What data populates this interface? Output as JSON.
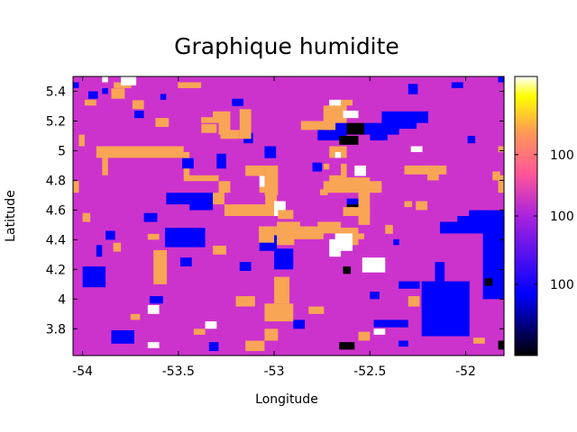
{
  "chart_data": {
    "type": "heatmap",
    "title": "Graphique humidite",
    "xlabel": "Longitude",
    "ylabel": "Latitude",
    "xlim": [
      -54.05,
      -51.8
    ],
    "ylim": [
      3.62,
      5.5
    ],
    "x_ticks": [
      -54,
      -53.5,
      -53,
      -52.5,
      -52
    ],
    "x_tick_labels": [
      "-54",
      "-53.5",
      "-53",
      "-52.5",
      "-52"
    ],
    "y_ticks": [
      3.8,
      4,
      4.2,
      4.4,
      4.6,
      4.8,
      5,
      5.2,
      5.4
    ],
    "y_tick_labels": [
      "3.8",
      "4",
      "4.2",
      "4.4",
      "4.6",
      "4.8",
      "5",
      "5.2",
      "5.4"
    ],
    "colorbar": {
      "palette": [
        "#000000",
        "#0000ff",
        "#cc33cc",
        "#ff9966",
        "#ffff00",
        "#ffffff"
      ],
      "tick_labels": [
        "100",
        "100",
        "100"
      ]
    },
    "category_colors": {
      "B": "#000000",
      "U": "#0000ff",
      "M": "#cc33cc",
      "O": "#f8a555",
      "W": "#ffffff"
    },
    "grid_rows_top_to_bottom": [
      "MMMMMWMMMMMMMMMMMMMMMMMMMMMMMMMMMMMMMMMMMMMMMMMMMMMMMMMMMMMMMMMMMMMMMMMMMU",
      "UMMMMMMOOOMMMMMMMMOOOOMMMMMMMMMMMMMMMMMMMMMMMMMMMMMMMMMMMMMMMMMMMUUMMMMMMM",
      "MMMMMUMMMMMMMMMMMMMMMMMMMMMMMMMMMMMMMMMMMMMMMMMMMMMMMMMMMMMMMMMMMMMMMMMMMM",
      "MMMMMMMMMMMMMMMUMMMMMMMMMMMMMMMMMMMMMMMMMMMMMMMMMMMMMMMMMMMMMMMMMMMMMMMMMM",
      "MMOOMMMMMMMMMMMMMMMMMMMMMMMMMMMMMMMMMMMMMMMMWWOOMMMMMMMMMMMMMMMMMMMMMMMMMM",
      "MMMMMMMMMMMMMMMMMMMMMMMMMMMMMMMMMMMMMMMMMMMOOOOMMMMMMMMMMMMMMMMMMMMMMMMMMM",
      "MMMMMMMMMMMMMMMMMMMMMMMMOOOMMMMMMMMMMMMMMMMOOOOMMMMMMUUUUUUUUMMMMMMMMMMMMM",
      "MMMMMMMMMMMMMMMMMMMMMMOOOOOMMMMMMMMMMMMMMMMOOOOMMMMMMUUUUUUUUMMMMMMMMMMMMM",
      "MMMMMMMMMMMMMMMMMMMMMMMMMOOMMMMMMMMMMMMMMMUUUUUBBBUUUUUUUUUMMMMMMMMMMMMMMM",
      "MMMMMMMMMMMMMMMMMMMMMMMMMOOMMMMMMMMMMMMMMMUUUUUBBBUUUUUUMMMMMMMMMMMMMMMMMM",
      "MOMMMMMMMMMMMMMMMMMMMMMMMMMMMMMMMMMMMMMMMMUUUUUMMMMUUUMMMMMMMMMMMMMMMMMMMM",
      "MOMMMMMMMMMMMMMMMMMMMMMMMMMMMMMMMMMMMMMMMMMMMMMMMMMMMMMMMMMMMMMMMMMMMMMMMM",
      "MMMMOOOOOOOOOOOOOOOMMMMMMMMMMMMMMMMMMMMMMMMMOOOMMMMMMMMMMMWWMMMMMMMMMMMMMO",
      "MMMMOOOOOOOOOOOOOOOOMMMMMMMMMMMMMMMMMMMMMMMMOWOMMMMMMMMMMMMMMMMMMMMMMMMMMM",
      "MMMMMOMMMMMMMMMMMMMOMMMMMMMMMMMMMMMMMMMMMMMMMMMMMMMMMMMMMMMMMMMMMMMMMMMMMM",
      "MMMMMOMMMMMMMMMMMMMOMMMMMMMMMMMMMMMMMMMMMMMOMMOMMMMMMMMMMMMMMMMMMMMMMMMMMM",
      "MMMMMOMMMMMMMMMMMMMOMMMMMMMMMMMMMMMMMMMMMMMMMMOMMMMMMMMMMMMMMMMMMMMMMMMMMM",
      "MMMMMMMMMMMMMMMMMMMOOOOOOMMMMMMMWWMMMMMMMMMMOOOMMMMMMMMMMMMMMMMMMMMMMMMMMO",
      "OMMMMMMMMMMMMMMMMMMMMMMMMOOMMMMMWWMMMMMMMMMOOOOOOOOOOMMMMMMMMMMMMMMMMMMMMO",
      "OMMMMMMMMMMMMMMMMMMMMMMMMOOMMMMMOMMMMMMMMMMOOOOOOOOOOMMMMMMMMMMMMMMMMMMMMO",
      "MMMMMMMMMMMMMMMMUUUUUUUUOOMMMMMMMOOMMMMMMMMMMMMMMMMMMMMMMMMMMMMMMMMMMMMMMM",
      "MMMMMMMMMMMMMMMMUUUUUUUUOOMMMMMMMOOMMMMMMMMMMMMUUMMMMMMMMMMMMMMMMMMMMMMMMM",
      "MMMMMMMMMMMMMMMMMMMMUUUUMMOOOOOOOOOMMMMMMMMMMMMBBMMMMMMMMMMMMMMMMMMMMMMMMM",
      "MMMMMMMMMMMMMMMMMMMMMMMMMMOOOOOOOOOMMMMMMMMMMMMBBMMMMMMMMMMMMMMMMMMMUUUUUU",
      "MMMMMMMMMMMMMMMMMMMMMMMMMMMMMMMMMMMMMMMMMMMMMMMMMMMMMMMMMMMMMMMMMMUUUUUUUU",
      "MMMMMMMMMMMMMMMMMMMMMMMMMMMMMMMMMMMOOOOMMMOOOOMMMMMMMMMMMMMMMMMUUUUUUUUUUU",
      "MMMMMMMMMMMMMMMMMMMMMMMMMMMMMMMMUUUOOOOOOOOOOOOOOMMMMMMMMMMMMMMUUUUUUUUUUU",
      "MMMMMMMMMMMMMMMMMMMMMMMMMMMMMMMMUUUOOOOOOOOMMWWWOOMMMMMMMMMMMMMMMMMMMMMMUU",
      "MMMMMMMMMMMMMMMMMMMMMMMMMMMMMMMMUUUOOOMMMMMMWWWWOMMMMMMUMMMMMMMMMMMMMMMMMU",
      "MMMMUMMMMMMMMMMMMMMMMMMMMMMMMMMMUUUMMMMMMMMMWWWWMMMMMMMMMMMMMMMMMMMMMMMMMU",
      "MMMMUMMMMMMMMMMMMMMMMMMMMMMMMMMMMMMMMMMMMMMMWWMMMMMMMMMMMMMMMMMMMMMMMMMMMU",
      "MMMMMMMMMMMMMMMMMMMMMMMMMMMMMMMMMMMMMMMMMMMMMMMMMMMMMMMMMMMMMMMMMMMMMMMMMU",
      "MMMMMMMMMMMMMMMMMMMMMMMMMMMMMMMMMMMMMMMMMMMMMMMMMMMMMMMMMMMMMMMMMMMMMMMMMM",
      "MMMMMMMMMMMMMMMMMMMMMMMMMMMMMMMMMMMMMMMMMMMMMMMMMMMMMMMMMMMMMMMMMMMMMMMMMM",
      "MMMMMMMMMMMMMMMMMMMMMMMMMMMMMMMMMMMMMMMMMMMMMMMMMMMMMMMMMMMMMMMMMMMMMMMMMM",
      "MMMMMMMMMMMMMMMMMMMMMMMMMMMMMMMMMMMMMMMMMMMMMMMMMMMMMMMMMMMMMMMMMMMMMMMMMM",
      "MMMMMMMMMMMMMMMMMMMMMMMMMMMMMMMMMMMMMMMMMMMMMMMMMMMMMMMMMMMMMMMMMMMMMMMMMM",
      "MMMMMMMMMMMMMMMMMMMMMMMMMMMMMMMMMMMMMMMMMMMMMMMMMMMMMMMMMMMMMMMMMMMMMMMMMM",
      "MMMMMMMMMMMMMMMMMMMMMMMMMMMMMMMMMMMMMMMMMMMMMMMMMMMMMMMMMMMMMMMMMMMMMMMMMM",
      "MMMMMMMMMMMMMMMMMMMMMMMMMMMMMMMMMMMMMMMMMMMMMMMMMMMMMMMMMMMMMMMMMMMMMMMMMM",
      "MMMMMMMMMMMMMMMMMMMMMMMMMMMMMMMMMMMMMMMMMMMMMMMMMMMMMMMMMMMMMMMMMMMMMMMMMM",
      "MMMMMMMMMMMMMMMMMMMMMMMMMMMMMMMMMMMMMMMMMMMMMMMMMMMMMMMMMMMMMMMMMMMMMMMMMM",
      "MMMMMMMMMMMMMMMMMMMMMMMMMMMMMMMMMMMMMMMMMMMMMMMMMMMMMMMMMMMMMMMMMMMMMMMMMM",
      "MMMMMMMMMMMMMMMMMMMMMMMMMMMMMMMMMMMMMMMMMMMMMMMMMMMMMMMMMMMMMMMMMMMMMMMMMM",
      "MMMMMMMMMMMMMMMMMMMMMMMMMMMMMMMMMMMMMMMMMMMMMMMMMMMMMMMMMMMMMMMMMMMMMMMMMM",
      "MMMMMMMMMMMMMMMMMMMMMMMMMMMMMMMMMMMMMMMMMMMMMMMMMMMMMMMMMMMMMMMMMMMMMMMMMM",
      "MMMMMMMMMMMMMMMMMMMMMMMMMMMMMMMMMMMMMMMMMMMMMMMMMMMMMMMMMMMMMMMMMMMMMMMMMM",
      "MMMMMMMMMMMMMMMMMMMMMMMMMMMMMMMMMMMMMMMMMMMMMMMMMMMMMMMMMMMMMMMMMMMMMMMMMM"
    ],
    "patches": [
      {
        "c": "U",
        "x0": -54.0,
        "x1": -53.88,
        "y0": 4.08,
        "y1": 4.22
      },
      {
        "c": "U",
        "x0": -53.57,
        "x1": -53.36,
        "y0": 4.35,
        "y1": 4.48
      },
      {
        "c": "U",
        "x0": -53.49,
        "x1": -53.43,
        "y0": 4.22,
        "y1": 4.28
      },
      {
        "c": "U",
        "x0": -53.18,
        "x1": -53.12,
        "y0": 4.19,
        "y1": 4.25
      },
      {
        "c": "U",
        "x0": -53.0,
        "x1": -52.9,
        "y0": 4.2,
        "y1": 4.34
      },
      {
        "c": "U",
        "x0": -52.35,
        "x1": -52.24,
        "y0": 4.07,
        "y1": 4.12
      },
      {
        "c": "U",
        "x0": -52.16,
        "x1": -52.11,
        "y0": 4.0,
        "y1": 4.25
      },
      {
        "c": "U",
        "x0": -51.91,
        "x1": -51.8,
        "y0": 4.0,
        "y1": 4.45
      },
      {
        "c": "U",
        "x0": -52.23,
        "x1": -51.98,
        "y0": 3.75,
        "y1": 4.12
      },
      {
        "c": "U",
        "x0": -52.48,
        "x1": -52.3,
        "y0": 3.81,
        "y1": 3.86
      },
      {
        "c": "U",
        "x0": -52.5,
        "x1": -52.45,
        "y0": 4.0,
        "y1": 4.05
      },
      {
        "c": "U",
        "x0": -53.65,
        "x1": -53.58,
        "y0": 3.97,
        "y1": 4.02
      },
      {
        "c": "U",
        "x0": -53.85,
        "x1": -53.73,
        "y0": 3.7,
        "y1": 3.79
      },
      {
        "c": "U",
        "x0": -53.34,
        "x1": -53.29,
        "y0": 3.65,
        "y1": 3.71
      },
      {
        "c": "U",
        "x0": -52.9,
        "x1": -52.84,
        "y0": 3.8,
        "y1": 3.86
      },
      {
        "c": "U",
        "x0": -52.35,
        "x1": -52.3,
        "y0": 3.68,
        "y1": 3.72
      },
      {
        "c": "U",
        "x0": -53.22,
        "x1": -53.16,
        "y0": 5.3,
        "y1": 5.35
      },
      {
        "c": "U",
        "x0": -53.16,
        "x1": -53.11,
        "y0": 5.05,
        "y1": 5.12
      },
      {
        "c": "U",
        "x0": -53.3,
        "x1": -53.25,
        "y0": 4.88,
        "y1": 4.98
      },
      {
        "c": "U",
        "x0": -53.05,
        "x1": -52.99,
        "y0": 4.95,
        "y1": 5.03
      },
      {
        "c": "U",
        "x0": -52.8,
        "x1": -52.75,
        "y0": 4.86,
        "y1": 4.92
      },
      {
        "c": "U",
        "x0": -53.68,
        "x1": -53.61,
        "y0": 4.52,
        "y1": 4.58
      },
      {
        "c": "U",
        "x0": -53.88,
        "x1": -53.83,
        "y0": 4.4,
        "y1": 4.46
      },
      {
        "c": "U",
        "x0": -53.73,
        "x1": -53.68,
        "y0": 5.22,
        "y1": 5.27
      },
      {
        "c": "U",
        "x0": -53.97,
        "x1": -53.92,
        "y0": 5.35,
        "y1": 5.4
      },
      {
        "c": "U",
        "x0": -52.3,
        "x1": -52.25,
        "y0": 5.38,
        "y1": 5.45
      },
      {
        "c": "U",
        "x0": -51.99,
        "x1": -51.95,
        "y0": 5.05,
        "y1": 5.1
      },
      {
        "c": "U",
        "x0": -53.48,
        "x1": -53.42,
        "y0": 4.88,
        "y1": 4.95
      },
      {
        "c": "B",
        "x0": -52.66,
        "x1": -52.56,
        "y0": 5.04,
        "y1": 5.1
      },
      {
        "c": "B",
        "x0": -52.66,
        "x1": -52.58,
        "y0": 3.66,
        "y1": 3.71
      },
      {
        "c": "B",
        "x0": -52.64,
        "x1": -52.6,
        "y0": 4.17,
        "y1": 4.22
      },
      {
        "c": "B",
        "x0": -51.9,
        "x1": -51.86,
        "y0": 4.09,
        "y1": 4.14
      },
      {
        "c": "B",
        "x0": -51.83,
        "x1": -51.8,
        "y0": 3.66,
        "y1": 3.72
      },
      {
        "c": "W",
        "x0": -53.8,
        "x1": -53.72,
        "y0": 5.44,
        "y1": 5.5
      },
      {
        "c": "W",
        "x0": -52.64,
        "x1": -52.56,
        "y0": 5.22,
        "y1": 5.27
      },
      {
        "c": "W",
        "x0": -52.58,
        "x1": -52.52,
        "y0": 4.83,
        "y1": 4.9
      },
      {
        "c": "W",
        "x0": -52.22,
        "x1": -52.14,
        "y0": 4.86,
        "y1": 4.9
      },
      {
        "c": "W",
        "x0": -53.0,
        "x1": -52.94,
        "y0": 4.56,
        "y1": 4.66
      },
      {
        "c": "W",
        "x0": -52.54,
        "x1": -52.42,
        "y0": 4.18,
        "y1": 4.28
      },
      {
        "c": "W",
        "x0": -53.66,
        "x1": -53.6,
        "y0": 3.9,
        "y1": 3.96
      },
      {
        "c": "W",
        "x0": -53.66,
        "x1": -53.6,
        "y0": 3.67,
        "y1": 3.71
      },
      {
        "c": "W",
        "x0": -53.36,
        "x1": -53.3,
        "y0": 3.8,
        "y1": 3.85
      },
      {
        "c": "W",
        "x0": -52.48,
        "x1": -52.42,
        "y0": 3.76,
        "y1": 3.8
      },
      {
        "c": "O",
        "x0": -53.85,
        "x1": -53.78,
        "y0": 5.35,
        "y1": 5.42
      },
      {
        "c": "O",
        "x0": -53.74,
        "x1": -53.68,
        "y0": 5.28,
        "y1": 5.34
      },
      {
        "c": "O",
        "x0": -53.62,
        "x1": -53.55,
        "y0": 5.16,
        "y1": 5.22
      },
      {
        "c": "O",
        "x0": -53.38,
        "x1": -53.3,
        "y0": 5.12,
        "y1": 5.18
      },
      {
        "c": "O",
        "x0": -53.18,
        "x1": -53.12,
        "y0": 5.08,
        "y1": 5.28
      },
      {
        "c": "O",
        "x0": -53.28,
        "x1": -53.18,
        "y0": 5.08,
        "y1": 5.14
      },
      {
        "c": "O",
        "x0": -52.86,
        "x1": -52.68,
        "y0": 5.14,
        "y1": 5.2
      },
      {
        "c": "O",
        "x0": -52.74,
        "x1": -52.68,
        "y0": 5.14,
        "y1": 5.28
      },
      {
        "c": "O",
        "x0": -52.32,
        "x1": -52.1,
        "y0": 4.84,
        "y1": 4.9
      },
      {
        "c": "O",
        "x0": -52.2,
        "x1": -52.14,
        "y0": 4.8,
        "y1": 4.86
      },
      {
        "c": "O",
        "x0": -51.86,
        "x1": -51.82,
        "y0": 4.8,
        "y1": 4.86
      },
      {
        "c": "O",
        "x0": -53.15,
        "x1": -53.05,
        "y0": 4.83,
        "y1": 4.9
      },
      {
        "c": "O",
        "x0": -53.05,
        "x1": -52.98,
        "y0": 4.7,
        "y1": 4.9
      },
      {
        "c": "O",
        "x0": -52.98,
        "x1": -52.9,
        "y0": 4.54,
        "y1": 4.6
      },
      {
        "c": "O",
        "x0": -52.76,
        "x1": -52.72,
        "y0": 4.7,
        "y1": 4.74
      },
      {
        "c": "O",
        "x0": -52.63,
        "x1": -52.5,
        "y0": 4.76,
        "y1": 4.82
      },
      {
        "c": "O",
        "x0": -52.56,
        "x1": -52.5,
        "y0": 4.5,
        "y1": 4.8
      },
      {
        "c": "O",
        "x0": -52.64,
        "x1": -52.5,
        "y0": 4.56,
        "y1": 4.62
      },
      {
        "c": "O",
        "x0": -52.32,
        "x1": -52.28,
        "y0": 4.62,
        "y1": 4.66
      },
      {
        "c": "O",
        "x0": -52.26,
        "x1": -52.2,
        "y0": 4.6,
        "y1": 4.66
      },
      {
        "c": "O",
        "x0": -52.42,
        "x1": -52.38,
        "y0": 4.44,
        "y1": 4.5
      },
      {
        "c": "O",
        "x0": -53.0,
        "x1": -52.74,
        "y0": 4.43,
        "y1": 4.49
      },
      {
        "c": "O",
        "x0": -53.08,
        "x1": -53.0,
        "y0": 4.38,
        "y1": 4.49
      },
      {
        "c": "O",
        "x0": -53.63,
        "x1": -53.56,
        "y0": 4.1,
        "y1": 4.33
      },
      {
        "c": "O",
        "x0": -53.32,
        "x1": -53.25,
        "y0": 4.3,
        "y1": 4.36
      },
      {
        "c": "O",
        "x0": -53.84,
        "x1": -53.8,
        "y0": 4.32,
        "y1": 4.38
      },
      {
        "c": "O",
        "x0": -53.66,
        "x1": -53.6,
        "y0": 4.4,
        "y1": 4.44
      },
      {
        "c": "O",
        "x0": -54.0,
        "x1": -53.96,
        "y0": 4.52,
        "y1": 4.58
      },
      {
        "c": "O",
        "x0": -53.0,
        "x1": -52.92,
        "y0": 3.97,
        "y1": 4.15
      },
      {
        "c": "O",
        "x0": -53.05,
        "x1": -52.9,
        "y0": 3.85,
        "y1": 3.97
      },
      {
        "c": "O",
        "x0": -53.2,
        "x1": -53.1,
        "y0": 3.95,
        "y1": 4.02
      },
      {
        "c": "O",
        "x0": -52.82,
        "x1": -52.74,
        "y0": 3.9,
        "y1": 3.95
      },
      {
        "c": "O",
        "x0": -52.3,
        "x1": -52.24,
        "y0": 3.95,
        "y1": 4.02
      },
      {
        "c": "O",
        "x0": -52.56,
        "x1": -52.5,
        "y0": 3.72,
        "y1": 3.78
      },
      {
        "c": "O",
        "x0": -53.15,
        "x1": -53.05,
        "y0": 3.65,
        "y1": 3.72
      },
      {
        "c": "O",
        "x0": -53.05,
        "x1": -52.98,
        "y0": 3.72,
        "y1": 3.8
      },
      {
        "c": "O",
        "x0": -53.75,
        "x1": -53.7,
        "y0": 3.86,
        "y1": 3.9
      },
      {
        "c": "O",
        "x0": -53.42,
        "x1": -53.36,
        "y0": 3.76,
        "y1": 3.8
      },
      {
        "c": "O",
        "x0": -51.96,
        "x1": -51.9,
        "y0": 3.7,
        "y1": 3.74
      }
    ]
  }
}
